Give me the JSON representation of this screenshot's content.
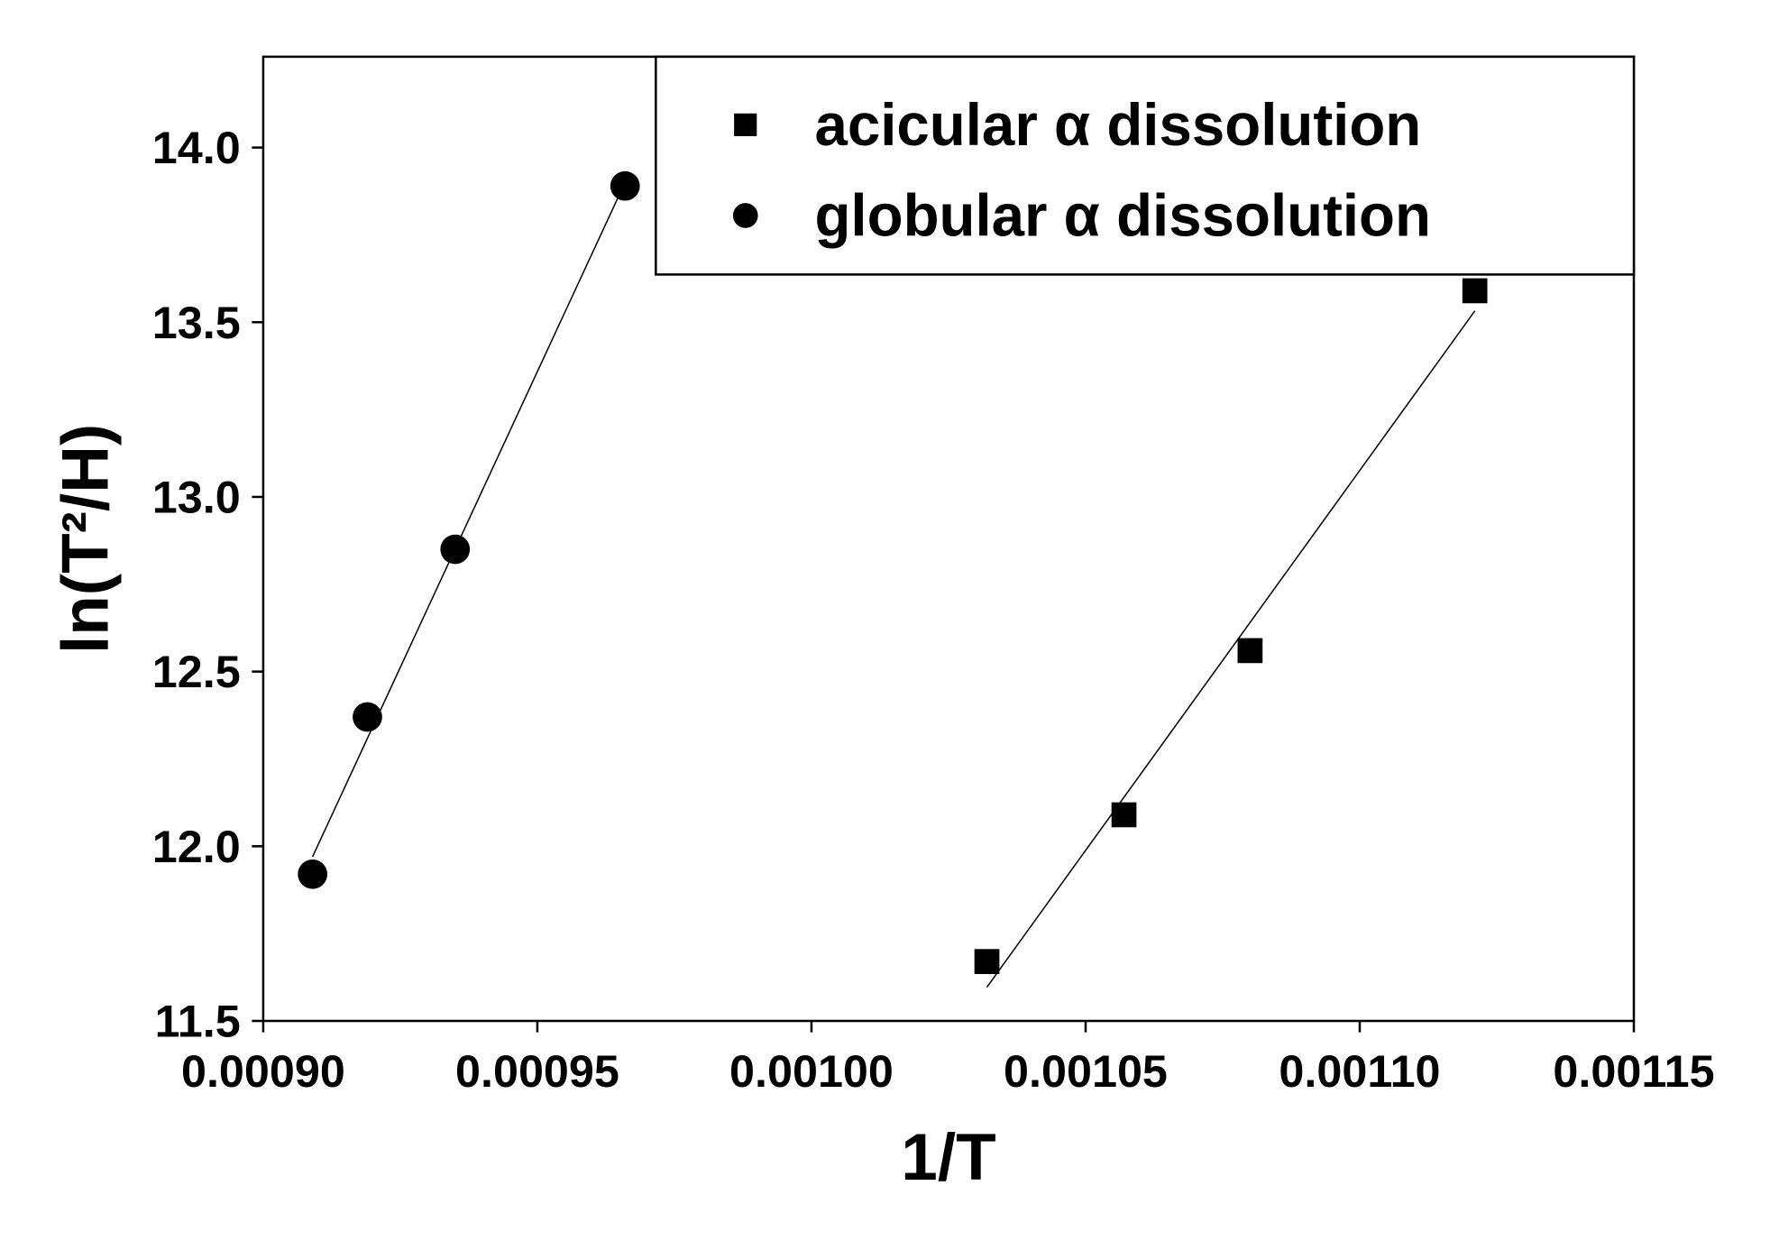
{
  "chart_data": {
    "type": "scatter",
    "x_label": "1/T",
    "y_label": "ln(T²/H)",
    "xlim": [
      0.0009,
      0.00115
    ],
    "xticks": [
      {
        "value": 0.0009,
        "label": "0.00090"
      },
      {
        "value": 0.00095,
        "label": "0.00095"
      },
      {
        "value": 0.001,
        "label": "0.00100"
      },
      {
        "value": 0.00105,
        "label": "0.00105"
      },
      {
        "value": 0.0011,
        "label": "0.00110"
      },
      {
        "value": 0.00115,
        "label": "0.00115"
      }
    ],
    "ylim": [
      11.5,
      14.26
    ],
    "yticks": [
      {
        "value": 11.5,
        "label": "11.5"
      },
      {
        "value": 12,
        "label": "12.0"
      },
      {
        "value": 12.5,
        "label": "12.5"
      },
      {
        "value": 13,
        "label": "13.0"
      },
      {
        "value": 13.5,
        "label": "13.5"
      },
      {
        "value": 14,
        "label": "14.0"
      }
    ],
    "legend": "upper right",
    "fit_lines": true,
    "series": [
      {
        "name": "acicular α dissolution",
        "marker": "square",
        "color": "#000000",
        "x": [
          0.001032,
          0.001057,
          0.00108,
          0.001121
        ],
        "values": [
          11.67,
          12.09,
          12.56,
          13.59
        ]
      },
      {
        "name": "globular α dissolution",
        "marker": "circle",
        "color": "#000000",
        "x": [
          0.000909,
          0.000919,
          0.000935,
          0.000966
        ],
        "values": [
          11.92,
          12.37,
          12.85,
          13.89
        ]
      }
    ]
  }
}
